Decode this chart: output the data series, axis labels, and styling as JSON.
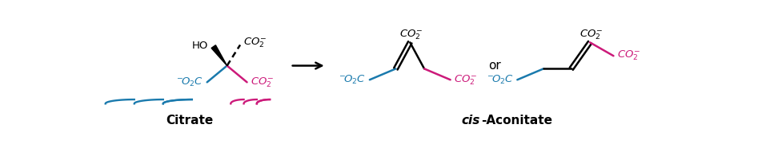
{
  "bg_color": "#ffffff",
  "black": "#000000",
  "blue": "#1a7aad",
  "pink": "#cc1a7a",
  "figsize": [
    9.67,
    1.81
  ],
  "dpi": 100,
  "citrate_label": "Citrate",
  "cis_label": "cis",
  "aconitate_label": "-Aconitate",
  "or_text": "or",
  "formula_fontsize": 9.5,
  "label_fontsize": 11,
  "lw": 1.8
}
